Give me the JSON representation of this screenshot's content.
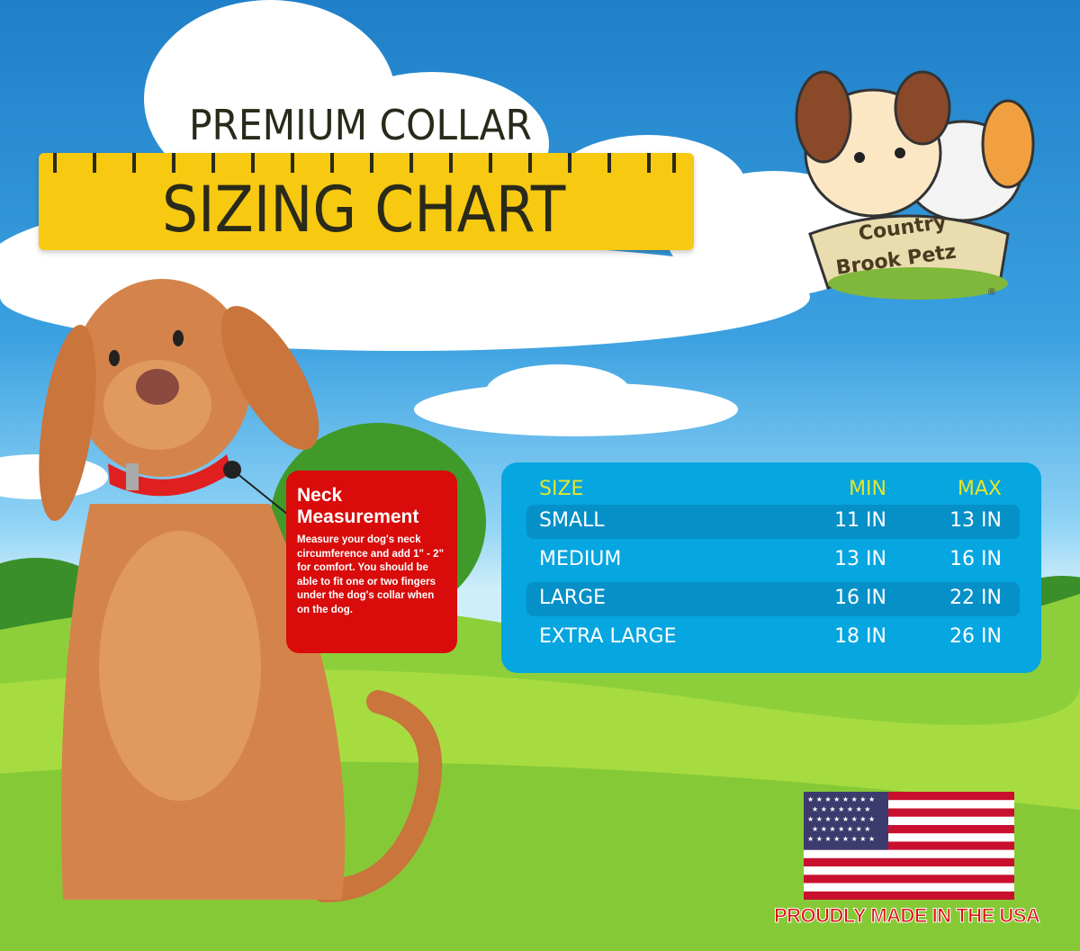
{
  "header": {
    "line1": "PREMIUM COLLAR",
    "line2": "SIZING CHART"
  },
  "logo": {
    "line1": "Country",
    "line2": "Brook Petz",
    "mark": "®"
  },
  "neck_box": {
    "title_1": "Neck",
    "title_2": "Measurement",
    "body": "Measure your dog's neck circumference and add 1\" - 2\" for comfort. You should be able to fit one or two fingers under the dog's collar when on the dog."
  },
  "size_table": {
    "headers": [
      "SIZE",
      "MIN",
      "MAX"
    ],
    "rows": [
      [
        "SMALL",
        "11 IN",
        "13 IN"
      ],
      [
        "MEDIUM",
        "13 IN",
        "16 IN"
      ],
      [
        "LARGE",
        "16 IN",
        "22 IN"
      ],
      [
        "EXTRA LARGE",
        "18 IN",
        "26 IN"
      ]
    ]
  },
  "footer": {
    "made_in": "PROUDLY MADE IN THE USA"
  },
  "colors": {
    "ruler": "#f7c910",
    "neck_box": "#d90b0b",
    "table": "#06a6e0",
    "header_text": "#e4e62a"
  }
}
